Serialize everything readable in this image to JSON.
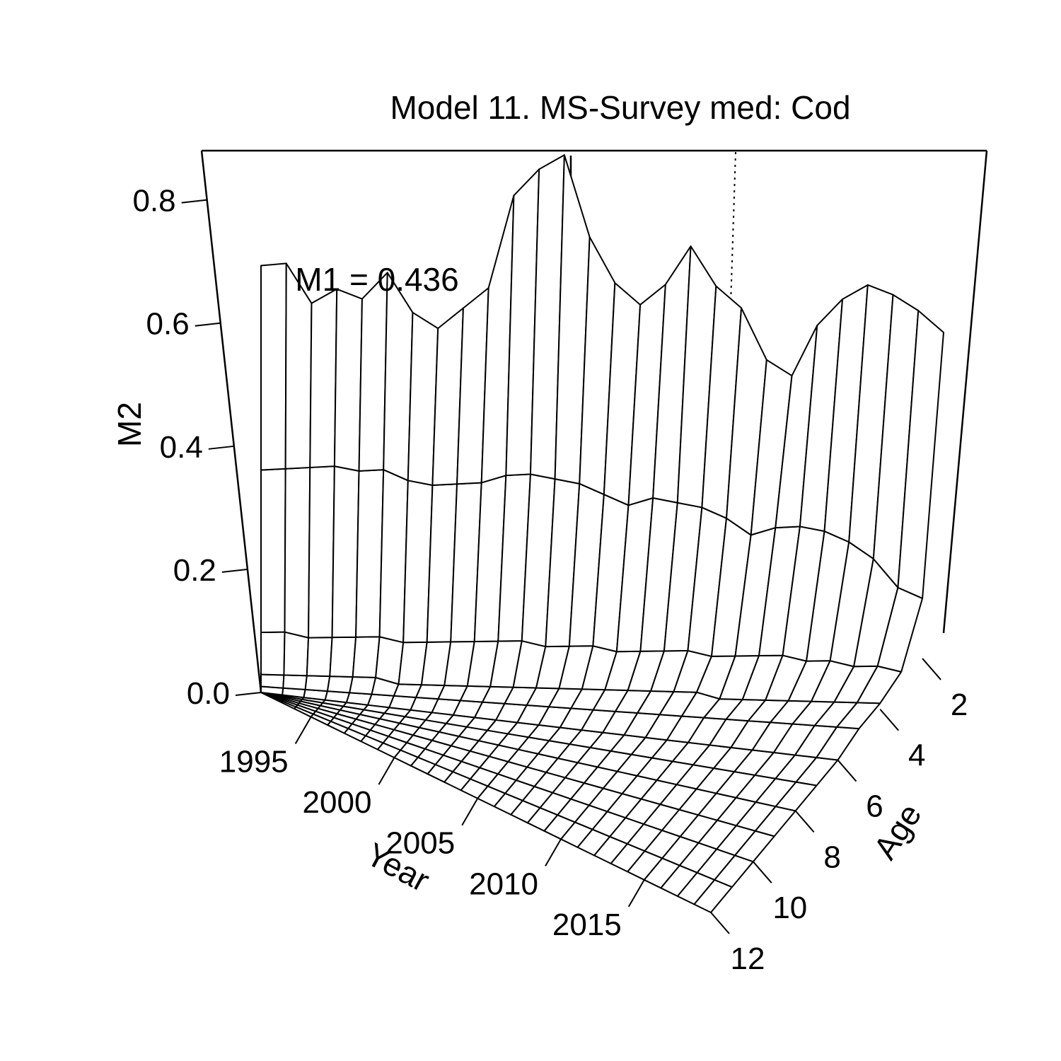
{
  "chart_data": {
    "type": "surface",
    "title": "Model 11. MS-Survey med: Cod",
    "annotation": "M1 = 0.436",
    "zlabel": "M2",
    "xlabel": "Year",
    "ylabel": "Age",
    "zlim": [
      0,
      0.88
    ],
    "z_ticks": [
      "0.0",
      "0.2",
      "0.4",
      "0.6",
      "0.8"
    ],
    "x_ticks": [
      "1995",
      "2000",
      "2005",
      "2010",
      "2015"
    ],
    "y_ticks": [
      "2",
      "4",
      "6",
      "8",
      "10",
      "12"
    ],
    "years": [
      1992,
      1993,
      1994,
      1995,
      1996,
      1997,
      1998,
      1999,
      2000,
      2001,
      2002,
      2003,
      2004,
      2005,
      2006,
      2007,
      2008,
      2009,
      2010,
      2011,
      2012,
      2013,
      2014,
      2015,
      2016,
      2017,
      2018,
      2019
    ],
    "ages": [
      1,
      2,
      3,
      4,
      5,
      6,
      7,
      8,
      9,
      10,
      11,
      12
    ],
    "reference_year": 2018,
    "series": [
      {
        "age": 1,
        "values": [
          0.71,
          0.71,
          0.64,
          0.66,
          0.64,
          0.68,
          0.61,
          0.58,
          0.61,
          0.64,
          0.79,
          0.83,
          0.85,
          0.71,
          0.63,
          0.59,
          0.62,
          0.68,
          0.61,
          0.57,
          0.48,
          0.45,
          0.53,
          0.57,
          0.59,
          0.57,
          0.54,
          0.5
        ]
      },
      {
        "age": 2,
        "values": [
          0.37,
          0.37,
          0.37,
          0.37,
          0.36,
          0.36,
          0.34,
          0.33,
          0.33,
          0.33,
          0.34,
          0.34,
          0.33,
          0.32,
          0.3,
          0.28,
          0.29,
          0.28,
          0.27,
          0.25,
          0.22,
          0.23,
          0.23,
          0.22,
          0.2,
          0.17,
          0.12,
          0.1
        ]
      },
      {
        "age": 3,
        "values": [
          0.1,
          0.1,
          0.09,
          0.09,
          0.09,
          0.09,
          0.08,
          0.08,
          0.08,
          0.08,
          0.08,
          0.08,
          0.07,
          0.07,
          0.07,
          0.06,
          0.06,
          0.06,
          0.06,
          0.05,
          0.05,
          0.05,
          0.05,
          0.04,
          0.04,
          0.03,
          0.03,
          0.02
        ]
      },
      {
        "age": 4,
        "values": [
          0.03,
          0.03,
          0.03,
          0.03,
          0.03,
          0.03,
          0.02,
          0.02,
          0.02,
          0.02,
          0.02,
          0.02,
          0.02,
          0.02,
          0.02,
          0.02,
          0.02,
          0.02,
          0.02,
          0.02,
          0.01,
          0.01,
          0.01,
          0.01,
          0.01,
          0.01,
          0.01,
          0.01
        ]
      },
      {
        "age": 5,
        "values": [
          0.01,
          0.01,
          0.01,
          0.01,
          0.01,
          0.01,
          0.01,
          0.01,
          0.01,
          0.01,
          0.01,
          0.01,
          0.01,
          0.01,
          0.01,
          0.01,
          0.01,
          0.01,
          0.01,
          0.01,
          0.01,
          0.01,
          0.01,
          0.01,
          0.01,
          0.01,
          0.01,
          0.01
        ]
      },
      {
        "age": 6,
        "values": [
          0,
          0,
          0,
          0,
          0,
          0,
          0,
          0,
          0,
          0,
          0,
          0,
          0,
          0,
          0,
          0,
          0,
          0,
          0,
          0,
          0,
          0,
          0,
          0,
          0,
          0,
          0,
          0
        ]
      },
      {
        "age": 7,
        "values": [
          0,
          0,
          0,
          0,
          0,
          0,
          0,
          0,
          0,
          0,
          0,
          0,
          0,
          0,
          0,
          0,
          0,
          0,
          0,
          0,
          0,
          0,
          0,
          0,
          0,
          0,
          0,
          0
        ]
      },
      {
        "age": 8,
        "values": [
          0,
          0,
          0,
          0,
          0,
          0,
          0,
          0,
          0,
          0,
          0,
          0,
          0,
          0,
          0,
          0,
          0,
          0,
          0,
          0,
          0,
          0,
          0,
          0,
          0,
          0,
          0,
          0
        ]
      },
      {
        "age": 9,
        "values": [
          0,
          0,
          0,
          0,
          0,
          0,
          0,
          0,
          0,
          0,
          0,
          0,
          0,
          0,
          0,
          0,
          0,
          0,
          0,
          0,
          0,
          0,
          0,
          0,
          0,
          0,
          0,
          0
        ]
      },
      {
        "age": 10,
        "values": [
          0,
          0,
          0,
          0,
          0,
          0,
          0,
          0,
          0,
          0,
          0,
          0,
          0,
          0,
          0,
          0,
          0,
          0,
          0,
          0,
          0,
          0,
          0,
          0,
          0,
          0,
          0,
          0
        ]
      },
      {
        "age": 11,
        "values": [
          0,
          0,
          0,
          0,
          0,
          0,
          0,
          0,
          0,
          0,
          0,
          0,
          0,
          0,
          0,
          0,
          0,
          0,
          0,
          0,
          0,
          0,
          0,
          0,
          0,
          0,
          0,
          0
        ]
      },
      {
        "age": 12,
        "values": [
          0,
          0,
          0,
          0,
          0,
          0,
          0,
          0,
          0,
          0,
          0,
          0,
          0,
          0,
          0,
          0,
          0,
          0,
          0,
          0,
          0,
          0,
          0,
          0,
          0,
          0,
          0,
          0
        ]
      }
    ]
  }
}
